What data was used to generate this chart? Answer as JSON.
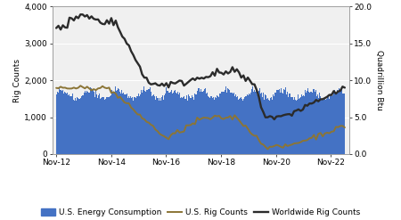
{
  "ylabel_left": "Rig Counts",
  "ylabel_right": "Quadrillion Btu",
  "ylim_left": [
    0,
    4000
  ],
  "ylim_right": [
    0.0,
    20.0
  ],
  "yticks_left": [
    0,
    1000,
    2000,
    3000,
    4000
  ],
  "yticks_right": [
    0.0,
    5.0,
    10.0,
    15.0,
    20.0
  ],
  "xtick_labels": [
    "Nov-12",
    "Nov-14",
    "Nov-16",
    "Nov-18",
    "Nov-20",
    "Nov-22"
  ],
  "bar_color": "#4472c4",
  "rig_us_color": "#8B7536",
  "rig_world_color": "#2b2b2b",
  "background_color": "#ffffff",
  "plot_bg_color": "#f0f0f0",
  "grid_color": "#ffffff",
  "legend_labels": [
    "U.S. Energy Consumption",
    "U.S. Rig Counts",
    "Worldwide Rig Counts"
  ],
  "n_bars": 550,
  "n_lines": 132
}
